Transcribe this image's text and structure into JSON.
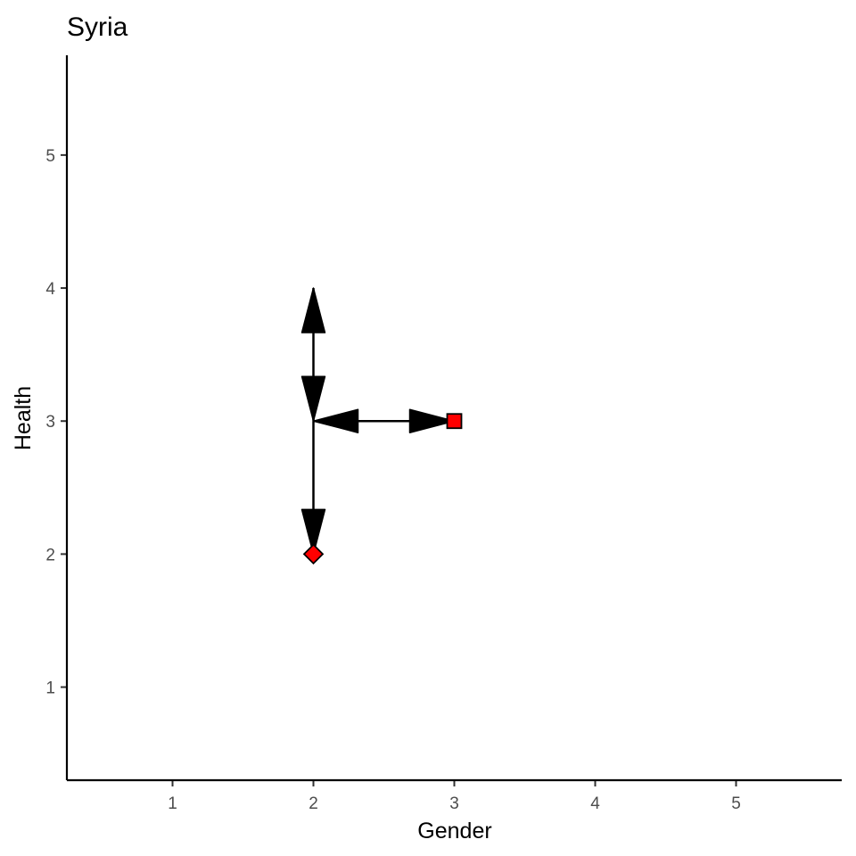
{
  "chart_data": {
    "type": "scatter",
    "title": "Syria",
    "xlabel": "Gender",
    "ylabel": "Health",
    "xlim": [
      0.25,
      5.75
    ],
    "ylim": [
      0.3,
      5.75
    ],
    "x_ticks": [
      1,
      2,
      3,
      4,
      5
    ],
    "y_ticks": [
      1,
      2,
      3,
      4,
      5
    ],
    "grid": false,
    "legend": "none",
    "points": [
      {
        "x": 3,
        "y": 3,
        "shape": "square",
        "fill": "#ff0000"
      },
      {
        "x": 2,
        "y": 2,
        "shape": "diamond",
        "fill": "#ff0000"
      }
    ],
    "arrows": [
      {
        "from": [
          2,
          3
        ],
        "to": [
          2,
          4
        ],
        "ends": "both"
      },
      {
        "from": [
          2,
          3
        ],
        "to": [
          3,
          3
        ],
        "ends": "both"
      },
      {
        "from": [
          2,
          3
        ],
        "to": [
          2,
          2
        ],
        "ends": "last"
      }
    ],
    "colors": {
      "line": "#000000",
      "point_fill": "#ff0000",
      "tick_label": "#4d4d4d"
    }
  }
}
